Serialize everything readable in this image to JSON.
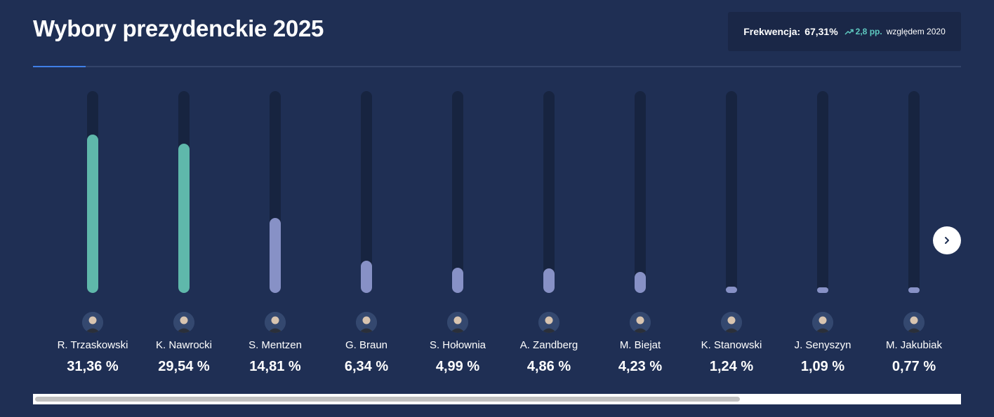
{
  "header": {
    "title": "Wybory prezydenckie 2025"
  },
  "turnout": {
    "label": "Frekwencja:",
    "value": "67,31%",
    "trend_icon": "trending-up-icon",
    "change": "2,8 pp.",
    "suffix": "względem 2020"
  },
  "colors": {
    "background": "#1f2f54",
    "leader_bar": "#5fb8ab",
    "other_bar": "#8791c6",
    "track": "#172440",
    "accent": "#3f7fe8",
    "trend": "#5ec9c0"
  },
  "chart_data": {
    "type": "bar",
    "title": "Wybory prezydenckie 2025",
    "xlabel": "",
    "ylabel": "",
    "ylim": [
      0,
      40
    ],
    "categories": [
      "R. Trzaskowski",
      "K. Nawrocki",
      "S. Mentzen",
      "G. Braun",
      "S. Hołownia",
      "A. Zandberg",
      "M. Biejat",
      "K. Stanowski",
      "J. Senyszyn",
      "M. Jakubiak"
    ],
    "values": [
      31.36,
      29.54,
      14.81,
      6.34,
      4.99,
      4.86,
      4.23,
      1.24,
      1.09,
      0.77
    ],
    "value_labels": [
      "31,36 %",
      "29,54 %",
      "14,81 %",
      "6,34 %",
      "4,99 %",
      "4,86 %",
      "4,23 %",
      "1,24 %",
      "1,09 %",
      "0,77 %"
    ],
    "highlighted": [
      true,
      true,
      false,
      false,
      false,
      false,
      false,
      false,
      false,
      false
    ]
  },
  "navigation": {
    "next_icon": "chevron-right-icon"
  }
}
